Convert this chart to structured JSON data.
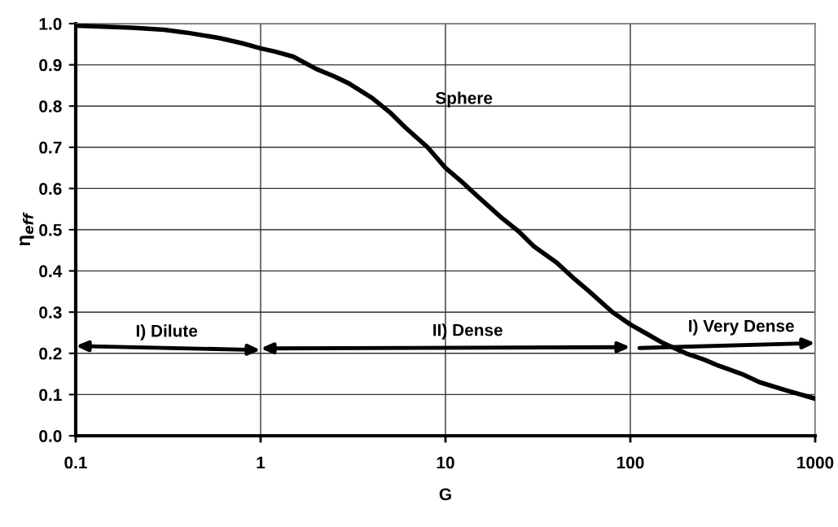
{
  "chart_data": {
    "type": "line",
    "xlabel": "G",
    "ylabel": "η$_{eff}$",
    "log": "x",
    "xlim": [
      0.1,
      1000
    ],
    "xticks": [
      0.1,
      1,
      10,
      100,
      1000
    ],
    "ylim": [
      0,
      1
    ],
    "yticks": [
      {
        "value": 0,
        "label": "0.0"
      },
      0.1,
      0.2,
      0.3,
      0.4,
      0.5,
      0.6,
      0.7,
      0.8,
      0.9,
      {
        "value": 1,
        "label": "1.0"
      }
    ],
    "grid": true,
    "series": [
      {
        "color": "#000000",
        "x": [
          0.1,
          0.2,
          0.3,
          0.4,
          0.6,
          0.8,
          1,
          1.2,
          1.5,
          2,
          2.5,
          3,
          4,
          5,
          6,
          8,
          10,
          12,
          15,
          20,
          25,
          30,
          40,
          50,
          60,
          80,
          100,
          120,
          150,
          200,
          250,
          300,
          400,
          500,
          700,
          1000
        ],
        "values": [
          0.995,
          0.99,
          0.985,
          0.978,
          0.965,
          0.952,
          0.94,
          0.932,
          0.92,
          0.89,
          0.872,
          0.855,
          0.82,
          0.785,
          0.75,
          0.7,
          0.65,
          0.62,
          0.58,
          0.53,
          0.495,
          0.46,
          0.42,
          0.38,
          0.35,
          0.3,
          0.27,
          0.25,
          0.225,
          0.2,
          0.185,
          0.17,
          0.15,
          0.13,
          0.11,
          0.09
        ]
      }
    ],
    "annotations": [
      "Sphere",
      "I) Dilute",
      "II) Dense",
      "I) Very Dense"
    ]
  }
}
